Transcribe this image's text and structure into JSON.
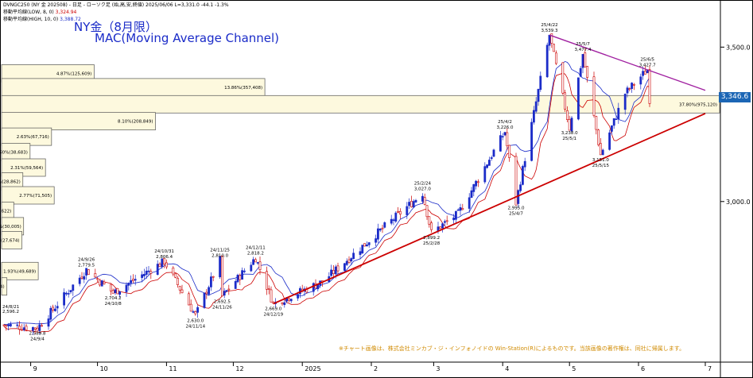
{
  "header": {
    "line1_prefix": "DVNGC250 (NY 金 202508) - 日足 - ローソク足 (始,高,安,終値) 2025/06/06 L=",
    "line1_value": "3,331.0 -44.1 -1.3%",
    "ma_low_label": "移動平均線(LOW, 8, 0)",
    "ma_low_value": "3,324.94",
    "ma_high_label": "移動平均線(HIGH, 10, 0)",
    "ma_high_value": "3,388.72"
  },
  "title": {
    "line1": "NY金（8月限）",
    "line2": "MAC(Moving Average Channel)"
  },
  "credit": "※チャート画像は、株式会社ミンカブ・ジ・インフォノイドの Win-Station(R)によるものです。当該画像の著作権は、同社に帰属します。",
  "current_price_tag": "3,346.6",
  "colors": {
    "up": "#1a2bc8",
    "down": "#cc0000",
    "ma_high": "#1a2bc8",
    "ma_low": "#cc0000",
    "upper_line": "#a020a0",
    "lower_line": "#cc0000",
    "band": "#fdf9de",
    "price_tag": "#1c66b5"
  },
  "chart_data": {
    "type": "candlestick",
    "y_axis": {
      "min": 2480,
      "max": 3650,
      "ticks": [
        3000.0,
        3500.0
      ],
      "tick_labels": [
        "3,000.0",
        "3,500.0"
      ]
    },
    "x_axis": {
      "ticks": [
        "9",
        "10",
        "11",
        "12",
        "2025",
        "2",
        "3",
        "4",
        "5",
        "6",
        "7"
      ]
    },
    "volume_profile": [
      {
        "price": 3415,
        "label": "4.87%(125,609)",
        "pct": 4.87
      },
      {
        "price": 3370,
        "label": "13.86%(357,408)",
        "pct": 13.86
      },
      {
        "price": 3315,
        "label": "37.80%(975,120)",
        "pct": 37.8
      },
      {
        "price": 3260,
        "label": "8.10%(208,849)",
        "pct": 8.1
      },
      {
        "price": 3210,
        "label": "2.63%(67,716)",
        "pct": 2.63
      },
      {
        "price": 3160,
        "label": "1.50%(38,683)",
        "pct": 1.5
      },
      {
        "price": 3110,
        "label": "2.31%(59,564)",
        "pct": 2.31
      },
      {
        "price": 3065,
        "label": "1.12%(28,862)",
        "pct": 1.12
      },
      {
        "price": 3020,
        "label": "2.77%(71,505)",
        "pct": 2.77
      },
      {
        "price": 2970,
        "label": "0.64%(16,622)",
        "pct": 0.64
      },
      {
        "price": 2920,
        "label": "1.16%(30,005)",
        "pct": 1.16
      },
      {
        "price": 2875,
        "label": "1.07%(27,674)",
        "pct": 1.07
      },
      {
        "price": 2775,
        "label": "1.93%(49,689)",
        "pct": 1.93
      },
      {
        "price": 2725,
        "label": "0.28%(7,134)",
        "pct": 0.28
      }
    ],
    "annotations": [
      {
        "date": "24/9/4",
        "price": 2589.8,
        "text": [
          "2,589.8",
          "24/9/4"
        ],
        "pos": "below"
      },
      {
        "date": "24/9/26",
        "price": 2779.5,
        "text": [
          "24/9/26",
          "2,779.5"
        ],
        "pos": "above"
      },
      {
        "date": "24/10/8",
        "price": 2704.2,
        "text": [
          "2,704.2",
          "24/10/8"
        ],
        "pos": "below"
      },
      {
        "date": "24/10/31",
        "price": 2806.4,
        "text": [
          "24/10/31",
          "2,806.4"
        ],
        "pos": "above"
      },
      {
        "date": "24/11/14",
        "price": 2630.0,
        "text": [
          "2,630.0",
          "24/11/14"
        ],
        "pos": "below"
      },
      {
        "date": "24/11/25",
        "price": 2810.0,
        "text": [
          "24/11/25",
          "2,810.0"
        ],
        "pos": "above"
      },
      {
        "date": "24/11/26",
        "price": 2692.5,
        "text": [
          "2,692.5",
          "24/11/26"
        ],
        "pos": "below"
      },
      {
        "date": "24/12/11",
        "price": 2818.2,
        "text": [
          "24/12/11",
          "2,818.2"
        ],
        "pos": "above"
      },
      {
        "date": "24/12/19",
        "price": 2669.0,
        "text": [
          "2,669.0",
          "24/12/19"
        ],
        "pos": "below"
      },
      {
        "date": "25/2/24",
        "price": 3027.0,
        "text": [
          "25/2/24",
          "3,027.0"
        ],
        "pos": "above"
      },
      {
        "date": "25/2/28",
        "price": 2899.2,
        "text": [
          "2,899.2",
          "25/2/28"
        ],
        "pos": "below"
      },
      {
        "date": "25/4/2",
        "price": 3226.0,
        "text": [
          "25/4/2",
          "3,226.0"
        ],
        "pos": "above"
      },
      {
        "date": "25/4/7",
        "price": 2995.0,
        "text": [
          "2,995.0",
          "25/4/7"
        ],
        "pos": "below"
      },
      {
        "date": "25/4/22",
        "price": 3539.3,
        "text": [
          "25/4/22",
          "3,539.3"
        ],
        "pos": "above"
      },
      {
        "date": "25/5/1",
        "price": 3238.0,
        "text": [
          "3,238.0",
          "25/5/1"
        ],
        "pos": "below"
      },
      {
        "date": "25/5/7",
        "price": 3477.4,
        "text": [
          "25/5/7",
          "3,477.4"
        ],
        "pos": "above"
      },
      {
        "date": "25/5/15",
        "price": 3151.0,
        "text": [
          "3,151.0",
          "25/5/15"
        ],
        "pos": "below"
      },
      {
        "date": "25/6/5",
        "price": 3427.7,
        "text": [
          "25/6/5",
          "3,427.7"
        ],
        "pos": "above"
      }
    ],
    "corner_annotation": [
      "24/8/21",
      "2,596.2"
    ],
    "key_points": [
      [
        "24/8/20",
        2600
      ],
      [
        "24/9/4",
        2589.8
      ],
      [
        "24/9/26",
        2779.5
      ],
      [
        "24/10/8",
        2704.2
      ],
      [
        "24/10/31",
        2806.4
      ],
      [
        "24/11/14",
        2630.0
      ],
      [
        "24/11/25",
        2810.0
      ],
      [
        "24/11/26",
        2692.5
      ],
      [
        "24/12/11",
        2818.2
      ],
      [
        "24/12/19",
        2669.0
      ],
      [
        "25/1/10",
        2740
      ],
      [
        "25/2/24",
        3027.0
      ],
      [
        "25/2/28",
        2899.2
      ],
      [
        "25/3/12",
        2960
      ],
      [
        "25/4/2",
        3226.0
      ],
      [
        "25/4/7",
        2995.0
      ],
      [
        "25/4/22",
        3539.3
      ],
      [
        "25/5/1",
        3238.0
      ],
      [
        "25/5/7",
        3477.4
      ],
      [
        "25/5/15",
        3151.0
      ],
      [
        "25/5/26",
        3350
      ],
      [
        "25/6/5",
        3427.7
      ],
      [
        "25/6/6",
        3331.0
      ]
    ],
    "trendlines": [
      {
        "name": "upper",
        "from": [
          "25/4/22",
          3539.3
        ],
        "to": [
          "25/7/1",
          3360
        ]
      },
      {
        "name": "lower",
        "from": [
          "24/12/19",
          2669.0
        ],
        "to": [
          "25/7/1",
          3285
        ]
      }
    ]
  }
}
